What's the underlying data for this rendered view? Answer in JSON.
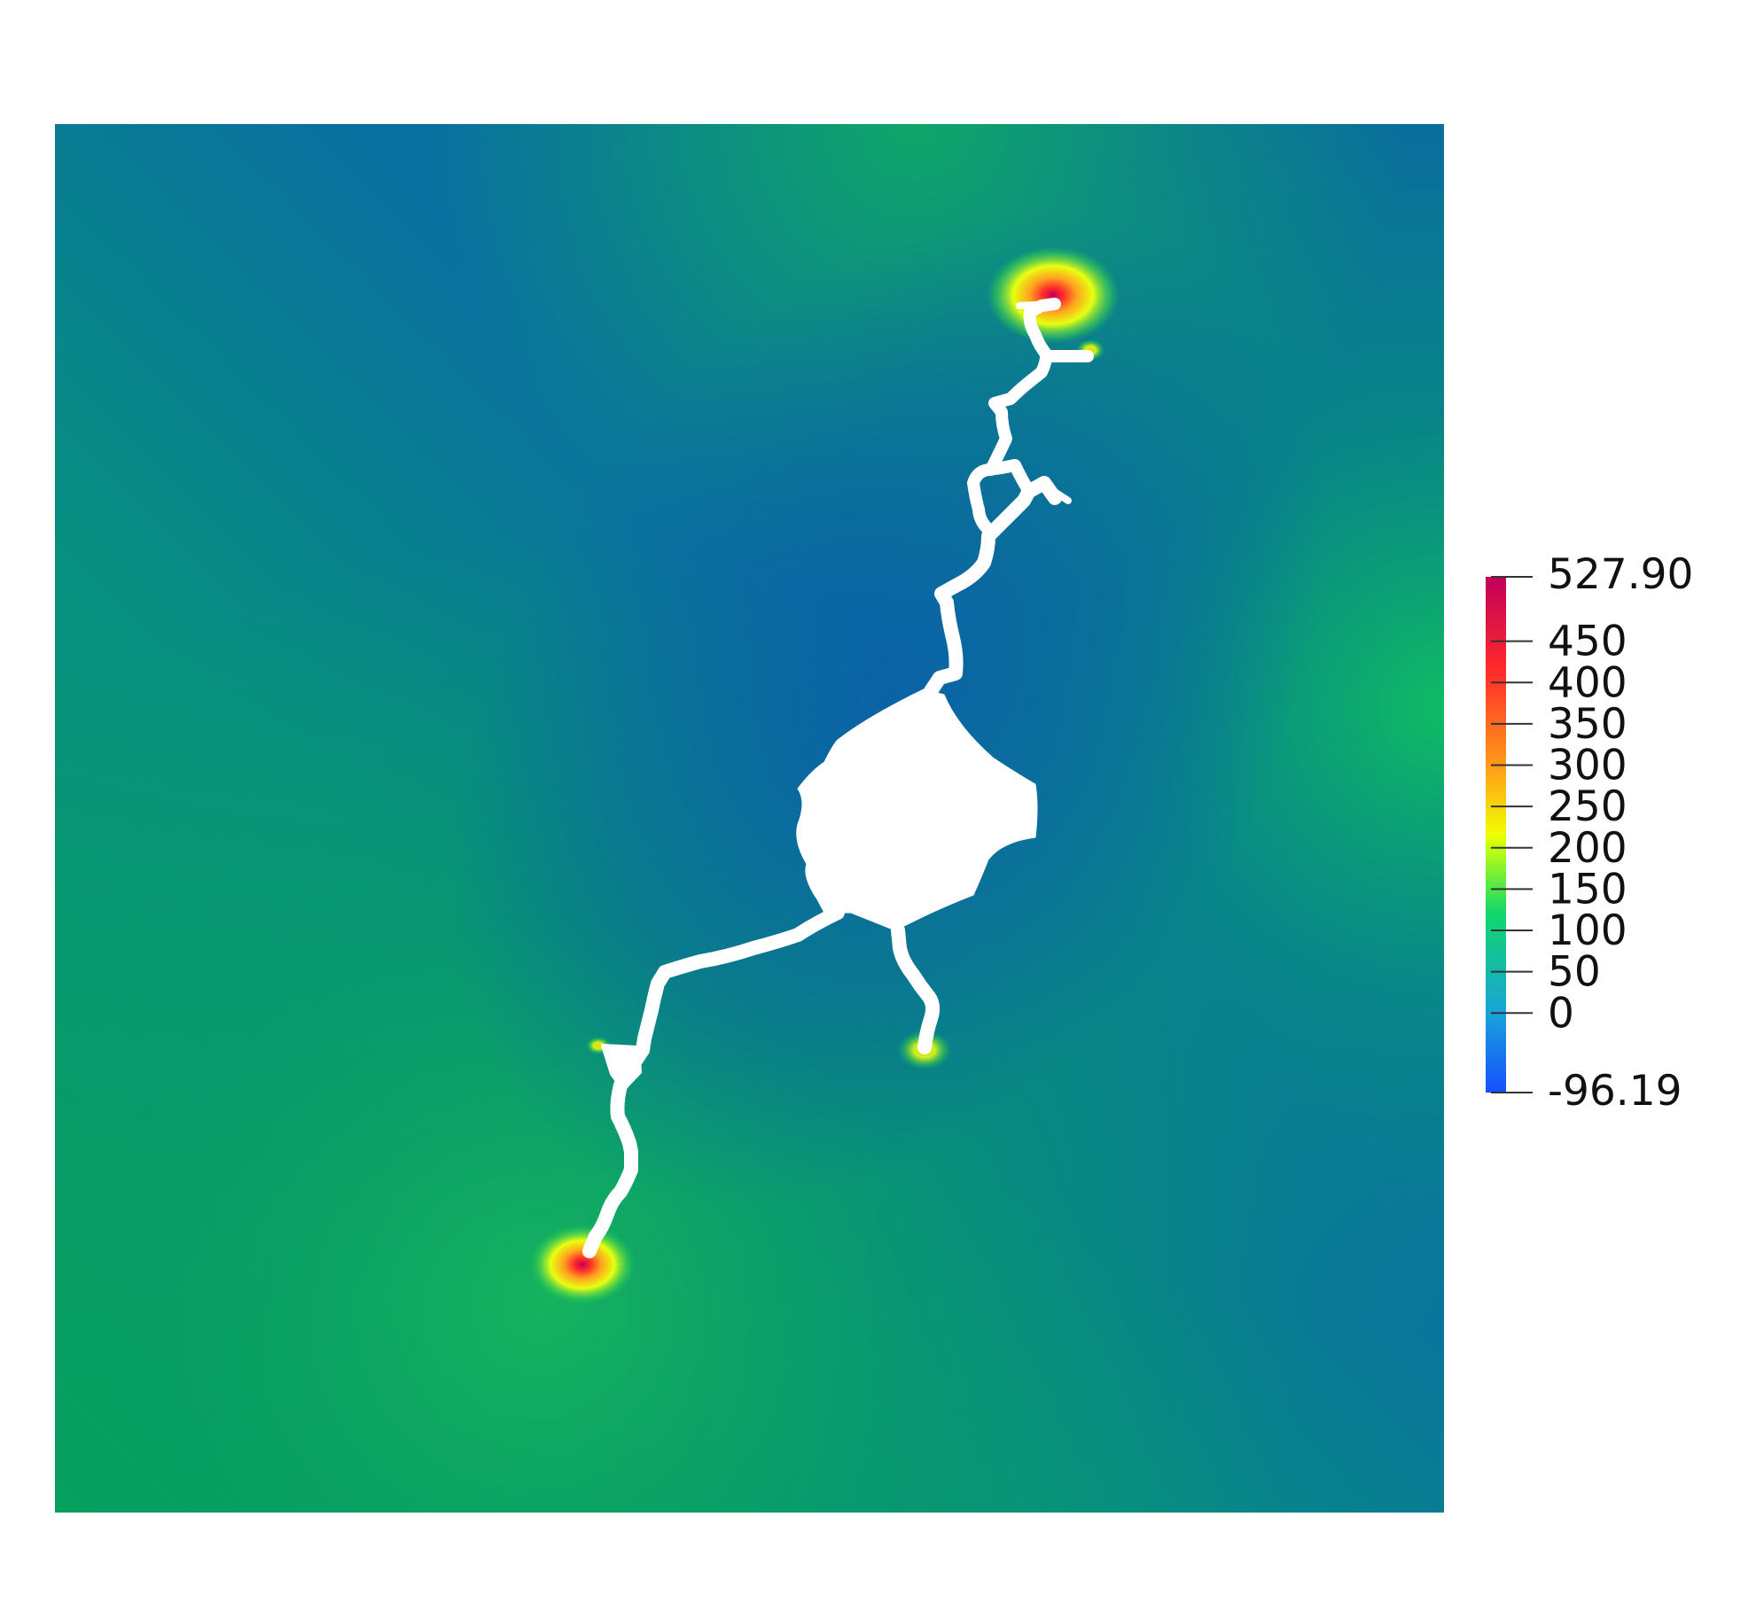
{
  "scalar_field": {
    "range": [
      -96.19,
      527.9
    ],
    "colormap": "jet-like (blue to red/magenta)"
  },
  "colorbar": {
    "max_label": "527.90",
    "min_label": "-96.19",
    "ticks": [
      {
        "value": 450,
        "label": "450"
      },
      {
        "value": 400,
        "label": "400"
      },
      {
        "value": 350,
        "label": "350"
      },
      {
        "value": 300,
        "label": "300"
      },
      {
        "value": 250,
        "label": "250"
      },
      {
        "value": 200,
        "label": "200"
      },
      {
        "value": 150,
        "label": "150"
      },
      {
        "value": 100,
        "label": "100"
      },
      {
        "value": 50,
        "label": "50"
      },
      {
        "value": 0,
        "label": "0"
      }
    ],
    "colors": {
      "min": "#1450ff",
      "low": "#1aa3d9",
      "mid_low": "#10d86a",
      "mid": "#f2ff00",
      "mid_high": "#ff9a1a",
      "high": "#ff2a2a",
      "max": "#c0005a"
    }
  },
  "domain": {
    "background_colors": {
      "deep_blue": "#0a6aa0",
      "teal": "#088a8f",
      "green": "#06a05e",
      "bright_green": "#18c060"
    },
    "crack_color": "#ffffff"
  }
}
